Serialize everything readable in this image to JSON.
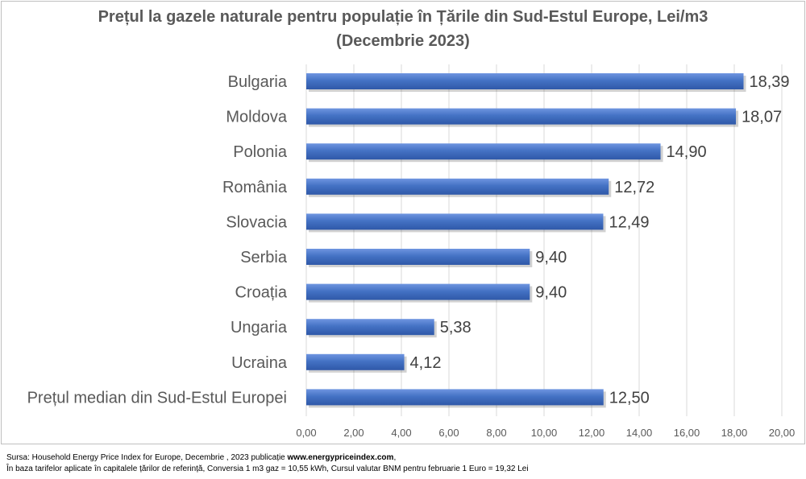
{
  "chart_data": {
    "type": "bar",
    "orientation": "horizontal",
    "title": "Prețul la gazele naturale pentru populație în Țările din Sud-Estul Europe, Lei/m3",
    "subtitle": "(Decembrie 2023)",
    "categories": [
      "Bulgaria",
      "Moldova",
      "Polonia",
      "România",
      "Slovacia",
      "Serbia",
      "Croația",
      "Ungaria",
      "Ucraina",
      "Prețul median din Sud-Estul Europei"
    ],
    "values": [
      18.39,
      18.07,
      14.9,
      12.72,
      12.49,
      9.4,
      9.4,
      5.38,
      4.12,
      12.5
    ],
    "data_labels": [
      "18,39",
      "18,07",
      "14,90",
      "12,72",
      "12,49",
      "9,40",
      "9,40",
      "5,38",
      "4,12",
      "12,50"
    ],
    "x_ticks": [
      "0,00",
      "2,00",
      "4,00",
      "6,00",
      "8,00",
      "10,00",
      "12,00",
      "14,00",
      "16,00",
      "18,00",
      "20,00"
    ],
    "xlim": [
      0,
      20
    ],
    "grid": "vertical major gridlines",
    "bar_color": "#4472c4",
    "legend": "none"
  },
  "footer": {
    "source_prefix": "Sursa:  Household Energy Price Index for Europe, Decembrie , 2023 publicație ",
    "source_link": "www.energypriceindex.com",
    "source_suffix": ",",
    "note": "În baza tarifelor aplicate în capitalele țărilor de referință, Conversia 1 m3 gaz = 10,55 kWh, Cursul valutar BNM pentru februarie 1 Euro = 19,32 Lei"
  }
}
